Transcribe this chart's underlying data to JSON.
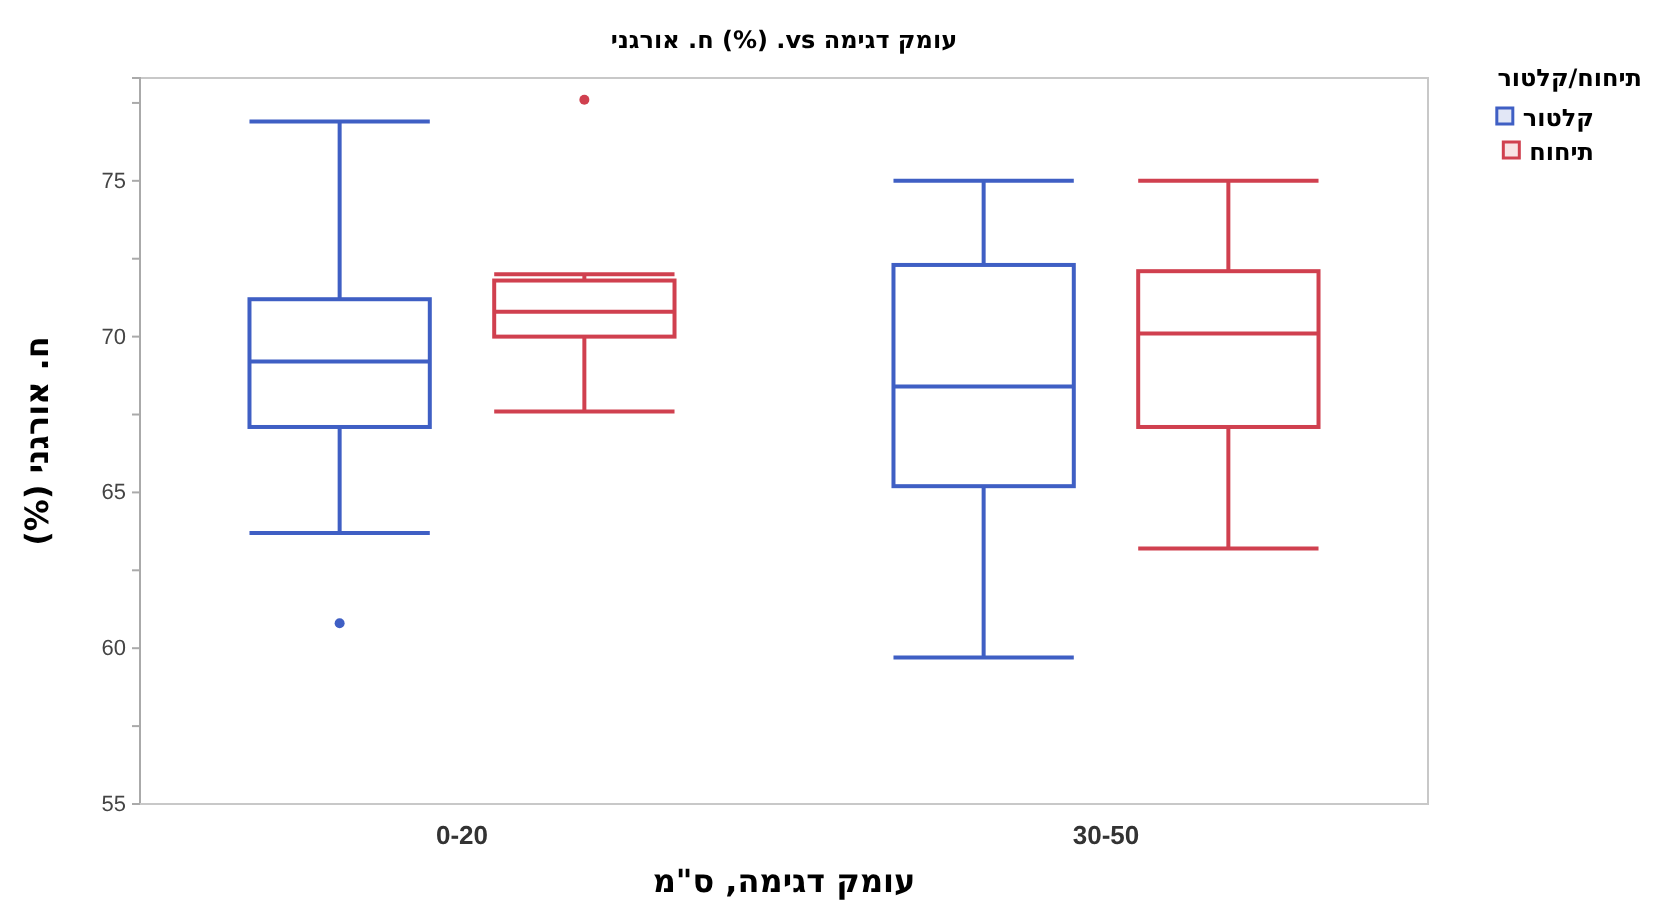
{
  "chart_data": {
    "type": "box",
    "title": "עומק דגימה vs. (%) ח. אורגני",
    "xlabel": "עומק דגימה, ס\"מ",
    "ylabel": "ח. אורגני (%)",
    "legend_title": "תיחוח/קלטור",
    "categories": [
      "0-20",
      "30-50"
    ],
    "ylim": [
      55,
      78.3
    ],
    "yticks": [
      55,
      {
        "value": 57.5,
        "label": null
      },
      60,
      {
        "value": 62.5,
        "label": null
      },
      65,
      {
        "value": 67.5,
        "label": null
      },
      70,
      {
        "value": 72.5,
        "label": null
      },
      75,
      {
        "value": 77.5,
        "label": null
      }
    ],
    "grid": false,
    "legend": "right",
    "series": [
      {
        "name": "קלטור",
        "color": "#3f5fc4",
        "boxes": [
          {
            "low": 63.7,
            "q1": 67.1,
            "median": 69.2,
            "q3": 71.2,
            "high": 76.9,
            "outliers": [
              60.8
            ]
          },
          {
            "low": 59.7,
            "q1": 65.2,
            "median": 68.4,
            "q3": 72.3,
            "high": 75.0
          }
        ]
      },
      {
        "name": "תיחוח",
        "color": "#d0404f",
        "boxes": [
          {
            "low": 67.6,
            "q1": 70.0,
            "median": 70.8,
            "q3": 71.8,
            "high": 72.0,
            "outliers": [
              77.6
            ]
          },
          {
            "low": 63.2,
            "q1": 67.1,
            "median": 70.1,
            "q3": 72.1,
            "high": 75.0
          }
        ]
      }
    ]
  }
}
